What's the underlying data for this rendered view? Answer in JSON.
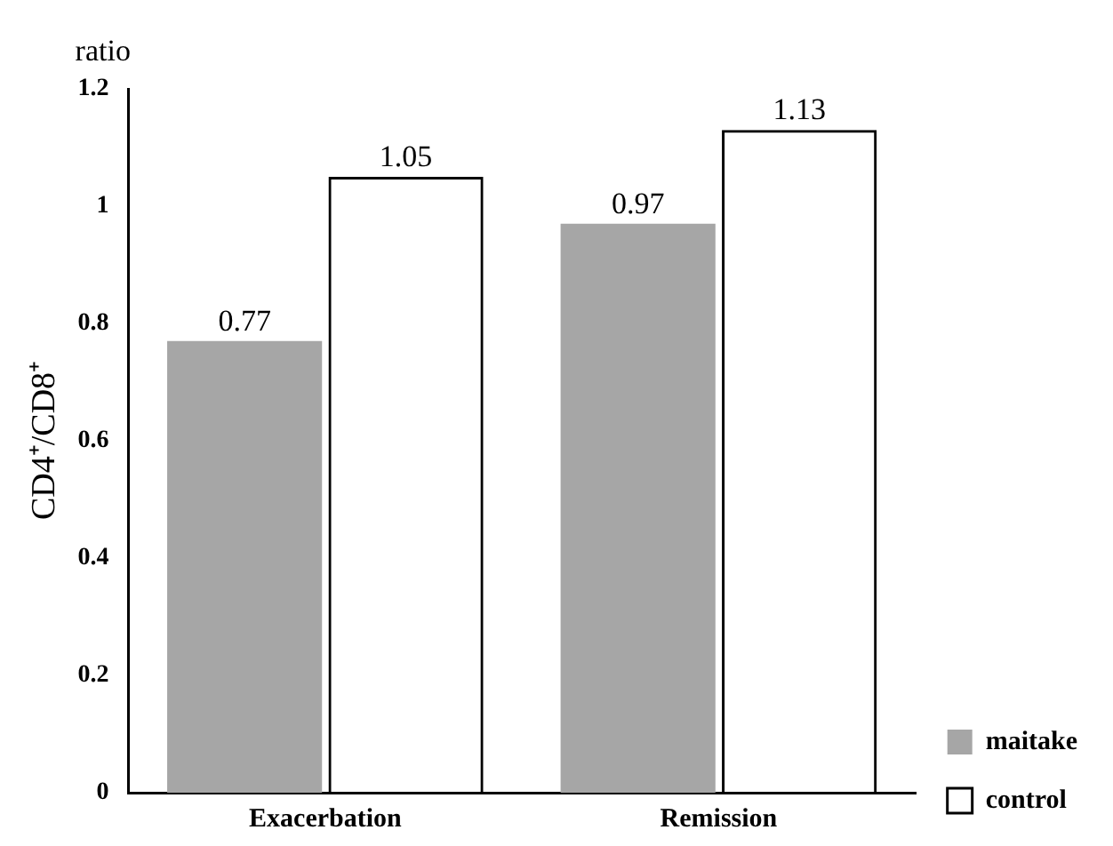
{
  "chart_data": {
    "type": "bar",
    "title": "ratio",
    "ylabel": "CD4⁺/CD8⁺",
    "categories": [
      "Exacerbation",
      "Remission"
    ],
    "series": [
      {
        "name": "maitake",
        "color": "#a6a6a6",
        "values": [
          0.77,
          0.97
        ]
      },
      {
        "name": "control",
        "color": "#000000",
        "values": [
          1.05,
          1.13
        ]
      }
    ],
    "ylim": [
      0,
      1.2
    ],
    "yticks": [
      0,
      0.2,
      0.4,
      0.6,
      0.8,
      1,
      1.2
    ],
    "data_labels": true,
    "grid": false,
    "legend": "bottom right"
  }
}
